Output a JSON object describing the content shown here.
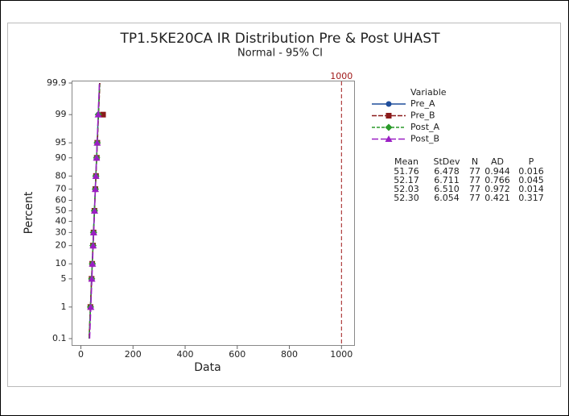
{
  "chart_data": {
    "type": "probability",
    "title": "TP1.5KE20CA IR Distribution Pre & Post UHAST",
    "subtitle": "Normal - 95% CI",
    "x_label": "Data",
    "y_label": "Percent",
    "xlim": [
      -34,
      1050
    ],
    "xticks": [
      0,
      200,
      400,
      600,
      800,
      1000
    ],
    "ylim": [
      0.1,
      99.9
    ],
    "yticks": [
      0.1,
      1,
      5,
      10,
      20,
      30,
      40,
      50,
      60,
      70,
      80,
      90,
      95,
      99,
      99.9
    ],
    "reference_line": {
      "value": 1000,
      "label": "1000",
      "color": "#a01818"
    },
    "legend_title": "Variable",
    "series": [
      {
        "name": "Pre_A",
        "color": "#1f4e9c",
        "marker": "circle",
        "dash": "none",
        "x": [
          37,
          41,
          43.5,
          46,
          48.5,
          52,
          55,
          57,
          60,
          62.5,
          67
        ],
        "y": [
          1,
          5,
          10,
          20,
          30,
          50,
          70,
          80,
          90,
          95,
          99
        ]
      },
      {
        "name": "Pre_B",
        "color": "#8b1a1a",
        "marker": "square",
        "dash": "6 2",
        "x": [
          36.5,
          41,
          43.5,
          46.5,
          48.5,
          52,
          55.5,
          58,
          61,
          63,
          85
        ],
        "y": [
          1,
          5,
          10,
          20,
          30,
          50,
          70,
          80,
          90,
          95,
          99
        ]
      },
      {
        "name": "Post_A",
        "color": "#2a9a2a",
        "marker": "diamond",
        "dash": "4 2",
        "x": [
          37,
          41.5,
          44,
          46.5,
          48.5,
          52,
          55.5,
          57.5,
          60.5,
          62.5,
          67
        ],
        "y": [
          1,
          5,
          10,
          20,
          30,
          50,
          70,
          80,
          90,
          95,
          99
        ]
      },
      {
        "name": "Post_B",
        "color": "#9b1fc4",
        "marker": "triangle",
        "dash": "8 3",
        "x": [
          38,
          42,
          44.5,
          47,
          49,
          52.5,
          55.5,
          57.5,
          60,
          62.5,
          66.5
        ],
        "y": [
          1,
          5,
          10,
          20,
          30,
          50,
          70,
          80,
          90,
          95,
          99
        ]
      }
    ],
    "stats": {
      "columns": [
        "Mean",
        "StDev",
        "N",
        "AD",
        "P"
      ],
      "rows": [
        [
          "51.76",
          "6.478",
          "77",
          "0.944",
          "0.016"
        ],
        [
          "52.17",
          "6.711",
          "77",
          "0.766",
          "0.045"
        ],
        [
          "52.03",
          "6.510",
          "77",
          "0.972",
          "0.014"
        ],
        [
          "52.30",
          "6.054",
          "77",
          "0.421",
          "0.317"
        ]
      ]
    }
  }
}
